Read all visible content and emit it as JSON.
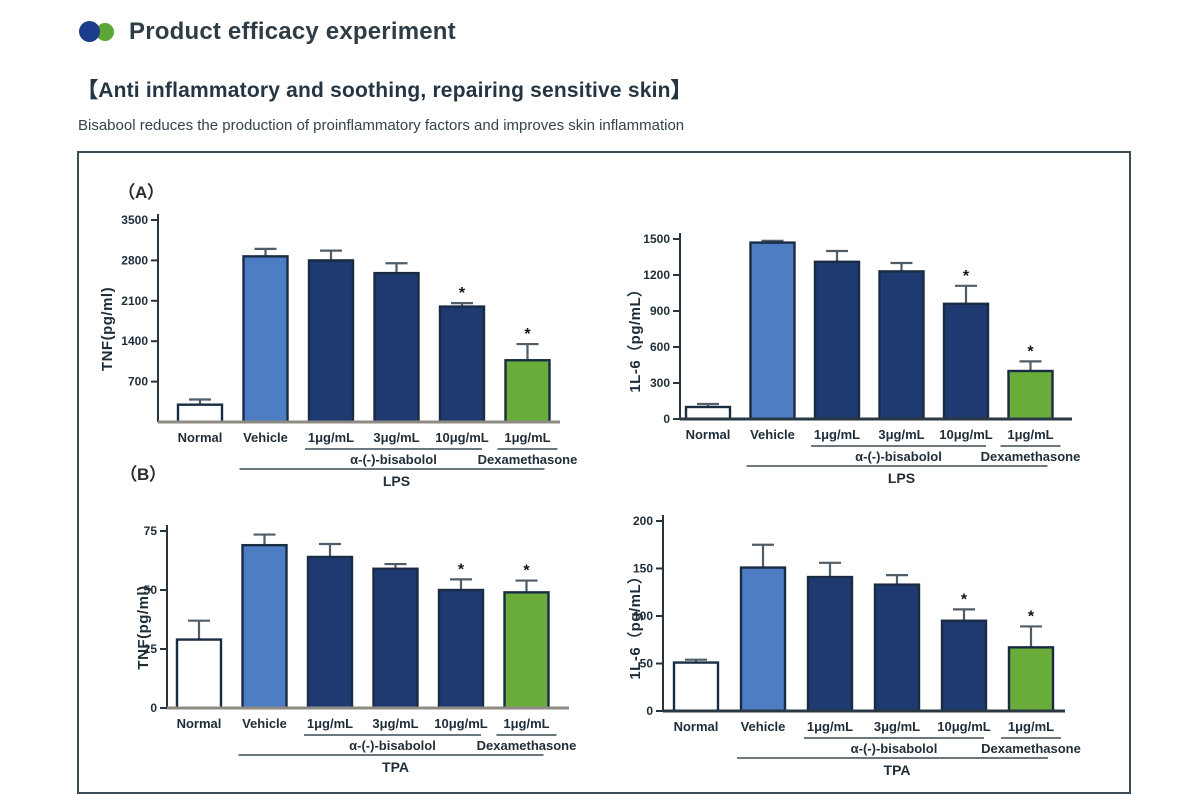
{
  "header": {
    "title": "Product efficacy experiment"
  },
  "section": {
    "heading": "【Anti inflammatory and soothing, repairing sensitive skin】",
    "subtitle": "Bisabool reduces the production of proinflammatory factors and improves skin inflammation"
  },
  "figure": {
    "panel_a_label": "（A）",
    "panel_b_label": "（B）"
  },
  "palette": {
    "logo_blue": "#1c3c8c",
    "logo_green": "#5ba634",
    "title_text": "#2e3c46",
    "heading_text": "#253642",
    "subtitle_text": "#32444f",
    "box_border": "#3b4c55",
    "axis": "#26343f",
    "tick_text": "#1f2d38",
    "bar_fill": {
      "normal": "#ffffff",
      "vehicle": "#4d7dc2",
      "bisabolol": "#1e3a70",
      "dexamethasone": "#69ac3a"
    },
    "bar_border": "#1a2b44",
    "error_bar": "#4e5d68",
    "baseline_gray": "#8e8b85",
    "baseline_dark": "#2a3844",
    "underline": "#3c4a54",
    "asterisk": "#111111"
  },
  "chart_data": [
    {
      "id": "tnf_lps",
      "type": "bar",
      "panel": "A",
      "position": "left",
      "ylabel": "TNF(pg/ml)",
      "ylim": [
        0,
        3500
      ],
      "yticks": [
        700,
        1400,
        2100,
        2800,
        3500
      ],
      "categories": [
        "Normal",
        "Vehicle",
        "1μg/mL",
        "3μg/mL",
        "10μg/mL",
        "1μg/mL"
      ],
      "values": [
        300,
        2870,
        2800,
        2580,
        2000,
        1070
      ],
      "errors": [
        90,
        130,
        170,
        170,
        60,
        280
      ],
      "significant": [
        false,
        false,
        false,
        false,
        true,
        true
      ],
      "bar_color_keys": [
        "normal",
        "vehicle",
        "bisabolol",
        "bisabolol",
        "bisabolol",
        "dexamethasone"
      ],
      "groups": [
        {
          "label": "α-(-)-bisabolol",
          "from": 2,
          "to": 4
        },
        {
          "label": "Dexamethasone",
          "from": 5,
          "to": 5
        }
      ],
      "treatment": {
        "label": "LPS",
        "from": 1,
        "to": 5
      },
      "baseline": "gray",
      "grid": false,
      "legend": "none"
    },
    {
      "id": "il6_lps",
      "type": "bar",
      "panel": "A",
      "position": "right",
      "ylabel": "1L-6（pg/mL）",
      "ylim": [
        0,
        1500
      ],
      "yticks": [
        0,
        300,
        600,
        900,
        1200,
        1500
      ],
      "categories": [
        "Normal",
        "Vehicle",
        "1μg/mL",
        "3μg/mL",
        "10μg/mL",
        "1μg/mL"
      ],
      "values": [
        100,
        1470,
        1310,
        1230,
        960,
        400
      ],
      "errors": [
        25,
        15,
        90,
        70,
        150,
        80
      ],
      "significant": [
        false,
        false,
        false,
        false,
        true,
        true
      ],
      "bar_color_keys": [
        "normal",
        "vehicle",
        "bisabolol",
        "bisabolol",
        "bisabolol",
        "dexamethasone"
      ],
      "groups": [
        {
          "label": "α-(-)-bisabolol",
          "from": 2,
          "to": 4
        },
        {
          "label": "Dexamethasone",
          "from": 5,
          "to": 5
        }
      ],
      "treatment": {
        "label": "LPS",
        "from": 1,
        "to": 5
      },
      "baseline": "dark",
      "grid": false,
      "legend": "none"
    },
    {
      "id": "tnf_tpa",
      "type": "bar",
      "panel": "B",
      "position": "left",
      "ylabel": "TNF(pg/ml)",
      "ylim": [
        0,
        75
      ],
      "yticks": [
        0,
        25,
        50,
        75
      ],
      "categories": [
        "Normal",
        "Vehicle",
        "1μg/mL",
        "3μg/mL",
        "10μg/mL",
        "1μg/mL"
      ],
      "values": [
        29,
        69,
        64,
        59,
        50,
        49
      ],
      "errors": [
        8,
        4.5,
        5.5,
        2,
        4.5,
        5
      ],
      "significant": [
        false,
        false,
        false,
        false,
        true,
        true
      ],
      "bar_color_keys": [
        "normal",
        "vehicle",
        "bisabolol",
        "bisabolol",
        "bisabolol",
        "dexamethasone"
      ],
      "groups": [
        {
          "label": "α-(-)-bisabolol",
          "from": 2,
          "to": 4
        },
        {
          "label": "Dexamethasone",
          "from": 5,
          "to": 5
        }
      ],
      "treatment": {
        "label": "TPA",
        "from": 1,
        "to": 5
      },
      "baseline": "gray",
      "grid": false,
      "legend": "none"
    },
    {
      "id": "il6_tpa",
      "type": "bar",
      "panel": "B",
      "position": "right",
      "ylabel": "1L-6（pg/mL）",
      "ylim": [
        0,
        200
      ],
      "yticks": [
        0,
        50,
        100,
        150,
        200
      ],
      "categories": [
        "Normal",
        "Vehicle",
        "1μg/mL",
        "3μg/mL",
        "10μg/mL",
        "1μg/mL"
      ],
      "values": [
        51,
        151,
        141,
        133,
        95,
        67
      ],
      "errors": [
        3,
        24,
        15,
        10,
        12,
        22
      ],
      "significant": [
        false,
        false,
        false,
        false,
        true,
        true
      ],
      "bar_color_keys": [
        "normal",
        "vehicle",
        "bisabolol",
        "bisabolol",
        "bisabolol",
        "dexamethasone"
      ],
      "groups": [
        {
          "label": "α-(-)-bisabolol",
          "from": 2,
          "to": 4
        },
        {
          "label": "Dexamethasone",
          "from": 5,
          "to": 5
        }
      ],
      "treatment": {
        "label": "TPA",
        "from": 1,
        "to": 5
      },
      "baseline": "dark",
      "grid": false,
      "legend": "none"
    }
  ]
}
